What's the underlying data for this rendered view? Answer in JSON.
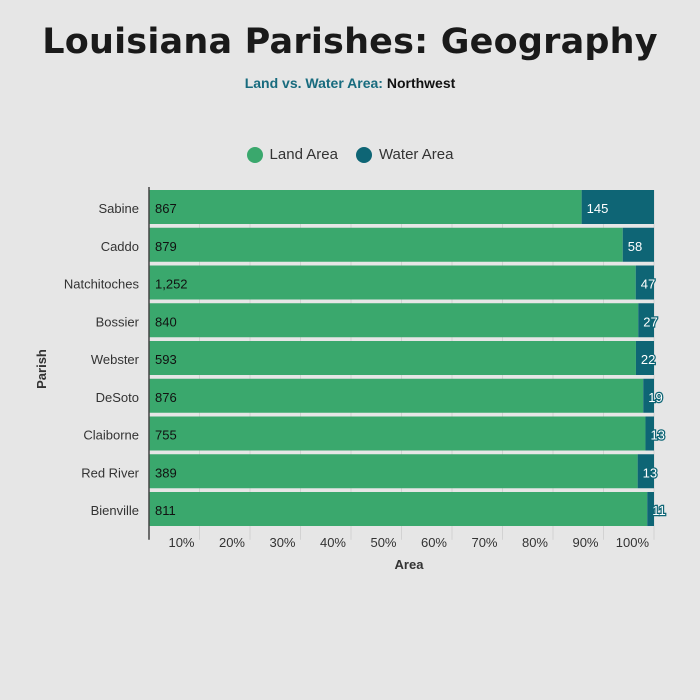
{
  "header": {
    "title": "Louisiana Parishes: Geography",
    "subtitle_prefix": "Land vs. Water Area:",
    "subtitle_region": "Northwest"
  },
  "colors": {
    "land": "#3aa86d",
    "water": "#0e6575",
    "subtitle_accent": "#176b7e",
    "background": "#e6e6e6"
  },
  "chart_data": {
    "type": "bar",
    "orientation": "horizontal",
    "stacked": "percent",
    "categories": [
      "Sabine",
      "Caddo",
      "Natchitoches",
      "Bossier",
      "Webster",
      "DeSoto",
      "Claiborne",
      "Red River",
      "Bienville"
    ],
    "category_labels": [
      "867",
      "879",
      "1,252",
      "840",
      "593",
      "876",
      "755",
      "389",
      "811"
    ],
    "series": [
      {
        "name": "Land Area",
        "values": [
          867,
          879,
          1252,
          840,
          593,
          876,
          755,
          389,
          811
        ],
        "labels": [
          "867",
          "879",
          "1,252",
          "840",
          "593",
          "876",
          "755",
          "389",
          "811"
        ]
      },
      {
        "name": "Water Area",
        "values": [
          145,
          58,
          47,
          27,
          22,
          19,
          13,
          13,
          11
        ],
        "labels": [
          "145",
          "58",
          "47",
          "27",
          "22",
          "19",
          "13",
          "13",
          "11"
        ]
      }
    ],
    "xlabel": "Area",
    "ylabel": "Parish",
    "xlim": [
      0,
      100
    ],
    "xticks": [
      "10%",
      "20%",
      "30%",
      "40%",
      "50%",
      "60%",
      "70%",
      "80%",
      "90%",
      "100%"
    ],
    "legend_position": "top-center",
    "grid": "vertical"
  }
}
